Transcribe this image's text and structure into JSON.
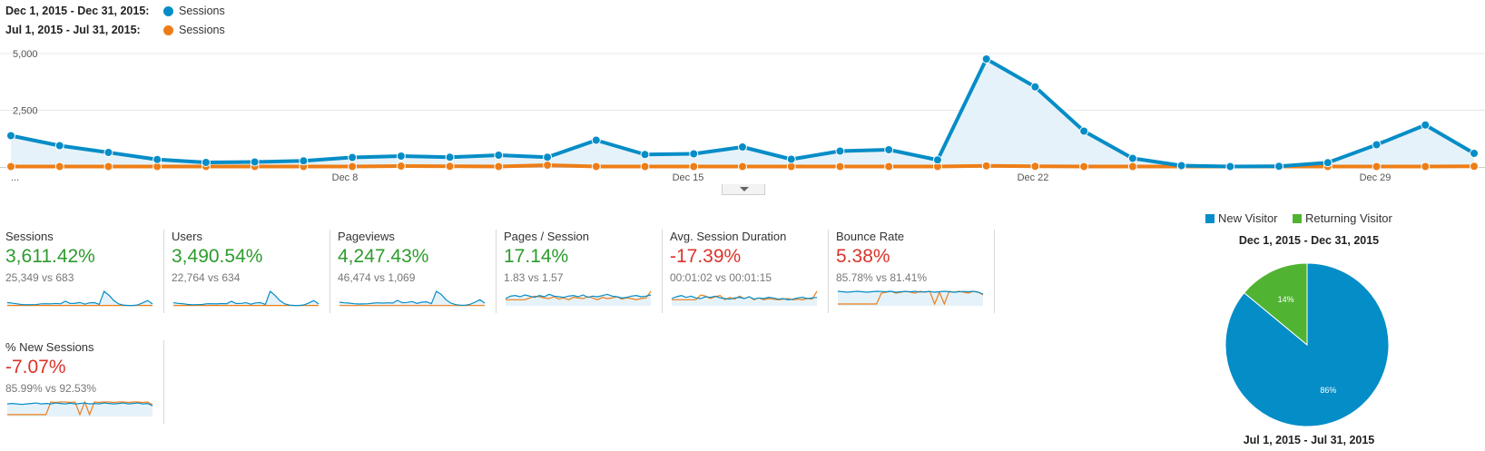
{
  "legend": {
    "current_range": "Dec 1, 2015 - Dec 31, 2015:",
    "previous_range": "Jul 1, 2015 - Jul 31, 2015:",
    "series_name": "Sessions",
    "current_color": "#058dc7",
    "previous_color": "#ed7e17"
  },
  "chart_data": {
    "type": "line",
    "y_ticks": [
      "5,000",
      "2,500"
    ],
    "x_ticks": [
      "...",
      "Dec 8",
      "Dec 15",
      "Dec 22",
      "Dec 29"
    ],
    "ylim": [
      0,
      5000
    ],
    "x": [
      "Dec 1",
      "Dec 2",
      "Dec 3",
      "Dec 4",
      "Dec 5",
      "Dec 6",
      "Dec 7",
      "Dec 8",
      "Dec 9",
      "Dec 10",
      "Dec 11",
      "Dec 12",
      "Dec 13",
      "Dec 14",
      "Dec 15",
      "Dec 16",
      "Dec 17",
      "Dec 18",
      "Dec 19",
      "Dec 20",
      "Dec 21",
      "Dec 22",
      "Dec 23",
      "Dec 24",
      "Dec 25",
      "Dec 26",
      "Dec 27",
      "Dec 28",
      "Dec 29",
      "Dec 30",
      "Dec 31"
    ],
    "series": [
      {
        "name": "Sessions",
        "range": "Dec 1, 2015 - Dec 31, 2015",
        "color": "#058dc7",
        "values": [
          1380,
          940,
          640,
          330,
          200,
          220,
          270,
          420,
          480,
          430,
          520,
          430,
          1180,
          550,
          580,
          880,
          340,
          700,
          760,
          310,
          4760,
          3530,
          1580,
          380,
          60,
          20,
          30,
          190,
          980,
          1850,
          600
        ]
      },
      {
        "name": "Sessions",
        "range": "Jul 1, 2015 - Jul 31, 2015",
        "color": "#ed7e17",
        "values": [
          20,
          20,
          20,
          20,
          20,
          20,
          20,
          20,
          40,
          30,
          20,
          80,
          20,
          20,
          20,
          20,
          20,
          20,
          20,
          20,
          50,
          30,
          20,
          20,
          20,
          20,
          20,
          20,
          20,
          20,
          30
        ]
      }
    ]
  },
  "metrics": [
    {
      "name": "Sessions",
      "value": "3,611.42%",
      "compare": "25,349 vs 683",
      "trend": "positive",
      "spark_current": [
        0.5,
        0.4,
        0.3,
        0.2,
        0.15,
        0.18,
        0.2,
        0.3,
        0.32,
        0.3,
        0.35,
        0.3,
        0.7,
        0.35,
        0.38,
        0.5,
        0.25,
        0.45,
        0.48,
        0.22,
        2.2,
        1.6,
        0.8,
        0.3,
        0.1,
        0.05,
        0.05,
        0.15,
        0.45,
        0.8,
        0.3
      ],
      "spark_previous": [
        0.05,
        0.05,
        0.05,
        0.05,
        0.05,
        0.05,
        0.05,
        0.05,
        0.05,
        0.05,
        0.05,
        0.05,
        0.05,
        0.05,
        0.05,
        0.05,
        0.05,
        0.05,
        0.05,
        0.05,
        0.05,
        0.05,
        0.05,
        0.05,
        0.05,
        0.05,
        0.05,
        0.05,
        0.05,
        0.05,
        0.05
      ]
    },
    {
      "name": "Users",
      "value": "3,490.54%",
      "compare": "22,764 vs 634",
      "trend": "positive",
      "spark_current": [
        0.45,
        0.35,
        0.3,
        0.2,
        0.15,
        0.17,
        0.2,
        0.3,
        0.3,
        0.28,
        0.33,
        0.3,
        0.65,
        0.33,
        0.35,
        0.45,
        0.23,
        0.42,
        0.45,
        0.2,
        2.1,
        1.5,
        0.75,
        0.28,
        0.1,
        0.05,
        0.05,
        0.13,
        0.42,
        0.75,
        0.28
      ],
      "spark_previous": [
        0.05,
        0.05,
        0.05,
        0.05,
        0.05,
        0.05,
        0.05,
        0.05,
        0.05,
        0.05,
        0.05,
        0.05,
        0.05,
        0.05,
        0.05,
        0.05,
        0.05,
        0.05,
        0.05,
        0.05,
        0.05,
        0.05,
        0.05,
        0.05,
        0.05,
        0.05,
        0.05,
        0.05,
        0.05,
        0.05,
        0.05
      ]
    },
    {
      "name": "Pageviews",
      "value": "4,247.43%",
      "compare": "46,474 vs 1,069",
      "trend": "positive",
      "spark_current": [
        0.6,
        0.5,
        0.45,
        0.35,
        0.3,
        0.32,
        0.35,
        0.45,
        0.5,
        0.45,
        0.5,
        0.45,
        0.9,
        0.5,
        0.55,
        0.7,
        0.4,
        0.6,
        0.65,
        0.35,
        2.4,
        1.9,
        1.0,
        0.45,
        0.2,
        0.1,
        0.1,
        0.25,
        0.6,
        1.0,
        0.45
      ],
      "spark_previous": [
        0.05,
        0.05,
        0.05,
        0.05,
        0.05,
        0.05,
        0.05,
        0.05,
        0.05,
        0.05,
        0.05,
        0.05,
        0.05,
        0.05,
        0.05,
        0.05,
        0.05,
        0.05,
        0.05,
        0.05,
        0.05,
        0.05,
        0.05,
        0.05,
        0.05,
        0.05,
        0.05,
        0.05,
        0.05,
        0.05,
        0.05
      ]
    },
    {
      "name": "Pages / Session",
      "value": "17.14%",
      "compare": "1.83 vs 1.57",
      "trend": "positive",
      "spark_current": [
        1.2,
        1.6,
        1.7,
        1.5,
        1.8,
        1.6,
        1.4,
        1.7,
        1.5,
        1.9,
        1.6,
        1.5,
        1.4,
        1.6,
        1.7,
        1.5,
        1.8,
        1.4,
        1.6,
        1.5,
        1.7,
        1.9,
        1.6,
        1.5,
        1.3,
        1.4,
        1.6,
        1.7,
        1.5,
        1.6,
        1.8
      ],
      "spark_previous": [
        1.0,
        1.0,
        1.0,
        1.0,
        1.0,
        1.3,
        1.6,
        1.5,
        1.3,
        1.2,
        1.5,
        1.1,
        1.3,
        1.0,
        1.4,
        1.3,
        1.2,
        1.5,
        1.3,
        1.0,
        1.4,
        1.2,
        1.3,
        1.5,
        1.1,
        1.3,
        1.2,
        1.0,
        1.2,
        1.3,
        2.4
      ]
    },
    {
      "name": "Avg. Session Duration",
      "value": "-17.39%",
      "compare": "00:01:02 vs 00:01:15",
      "trend": "negative",
      "spark_current": [
        1.2,
        1.5,
        1.7,
        1.4,
        1.6,
        1.3,
        1.2,
        1.5,
        1.4,
        1.6,
        1.3,
        1.2,
        1.1,
        1.3,
        1.4,
        1.2,
        1.5,
        1.1,
        1.3,
        1.2,
        1.4,
        1.3,
        1.1,
        1.2,
        1.0,
        1.1,
        1.3,
        1.4,
        1.2,
        1.3,
        1.4
      ],
      "spark_previous": [
        1.0,
        1.0,
        1.0,
        1.0,
        1.0,
        1.0,
        1.8,
        1.6,
        1.2,
        1.5,
        1.7,
        1.0,
        1.4,
        1.1,
        1.6,
        1.2,
        1.5,
        1.0,
        1.3,
        1.0,
        1.2,
        1.1,
        1.0,
        1.1,
        1.2,
        1.0,
        1.1,
        1.0,
        1.2,
        1.1,
        2.4
      ]
    },
    {
      "name": "Bounce Rate",
      "value": "5.38%",
      "compare": "85.78% vs 81.41%",
      "trend": "negative",
      "spark_current": [
        1.6,
        1.55,
        1.5,
        1.55,
        1.6,
        1.55,
        1.5,
        1.55,
        1.6,
        1.58,
        1.55,
        1.6,
        1.5,
        1.55,
        1.58,
        1.55,
        1.6,
        1.52,
        1.55,
        1.58,
        1.5,
        1.55,
        1.6,
        1.55,
        1.5,
        1.55,
        1.58,
        1.55,
        1.6,
        1.5,
        1.3
      ],
      "spark_previous": [
        0.2,
        0.2,
        0.2,
        0.2,
        0.2,
        0.2,
        0.2,
        0.2,
        0.2,
        1.4,
        1.5,
        1.6,
        1.4,
        1.5,
        1.6,
        1.5,
        1.4,
        1.6,
        1.5,
        1.6,
        0.2,
        1.5,
        0.2,
        1.6,
        1.5,
        1.6,
        1.5,
        1.4,
        1.6,
        1.5,
        1.2
      ]
    },
    {
      "name": "% New Sessions",
      "value": "-7.07%",
      "compare": "85.99% vs 92.53%",
      "trend": "negative",
      "spark_current": [
        1.3,
        1.35,
        1.3,
        1.25,
        1.3,
        1.35,
        1.4,
        1.3,
        1.35,
        1.3,
        1.4,
        1.35,
        1.3,
        1.38,
        1.3,
        1.35,
        1.4,
        1.3,
        1.35,
        1.3,
        1.4,
        1.35,
        1.3,
        1.35,
        1.4,
        1.3,
        1.35,
        1.4,
        1.3,
        1.35,
        1.1
      ],
      "spark_previous": [
        0.2,
        0.2,
        0.2,
        0.2,
        0.2,
        0.2,
        0.2,
        0.2,
        0.2,
        1.5,
        1.45,
        1.5,
        1.5,
        1.45,
        1.5,
        0.2,
        1.5,
        0.2,
        1.5,
        1.45,
        1.5,
        1.5,
        1.45,
        1.5,
        1.5,
        1.45,
        1.5,
        1.5,
        1.45,
        1.5,
        1.2
      ]
    }
  ],
  "pie": {
    "legend": [
      {
        "label": "New Visitor",
        "color": "#058dc7"
      },
      {
        "label": "Returning Visitor",
        "color": "#50b432"
      }
    ],
    "title_current": "Dec 1, 2015 - Dec 31, 2015",
    "title_previous": "Jul 1, 2015 - Jul 31, 2015",
    "slices": [
      {
        "label": "86%",
        "value": 86,
        "color": "#058dc7"
      },
      {
        "label": "14%",
        "value": 14,
        "color": "#50b432"
      }
    ]
  },
  "colors": {
    "positive": "#2d9b2d",
    "negative": "#d9342b",
    "area_fill": "#e6f2f9"
  }
}
